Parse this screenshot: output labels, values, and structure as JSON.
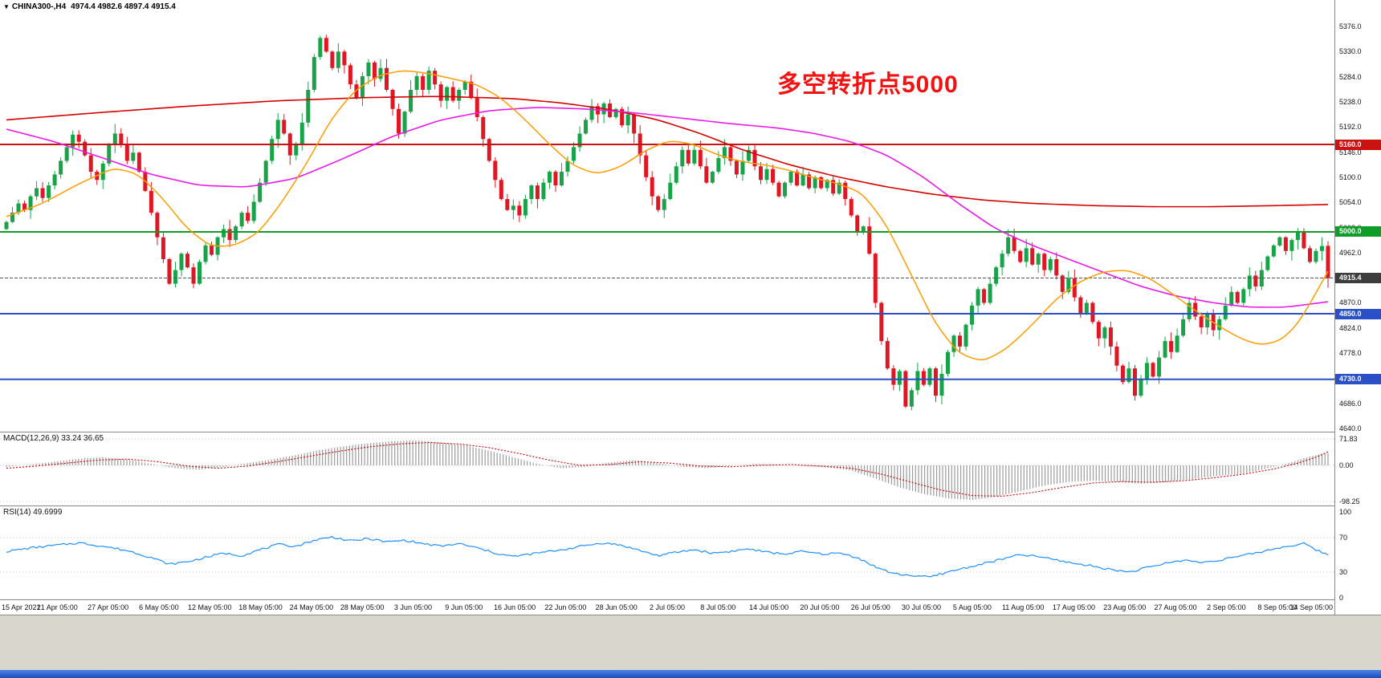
{
  "window": {
    "dropdown_icon": "▼",
    "symbol_title": "CHINA300-,H4",
    "ohlc_display": "4974.4 4982.6 4897.4 4915.4"
  },
  "annotation": {
    "text": "多空转折点5000",
    "color": "#f21212"
  },
  "panels": {
    "macd_label": "MACD(12,26,9) 33.24 36.65",
    "rsi_label": "RSI(14) 49.6999"
  },
  "chart_data": {
    "type": "candlestick",
    "symbol": "CHINA300-",
    "timeframe": "H4",
    "title": "CHINA300-,H4",
    "last_bar": {
      "open": 4974.4,
      "high": 4982.6,
      "low": 4897.4,
      "close": 4915.4
    },
    "ylim": [
      4640.0,
      5376.0
    ],
    "y_ticks": [
      5376,
      5330,
      5284,
      5238,
      5192,
      5146,
      5100,
      5054,
      5008,
      4962,
      4916,
      4870,
      4824,
      4778,
      4732,
      4686,
      4640
    ],
    "x_labels": [
      "15 Apr 2021",
      "21 Apr 05:00",
      "27 Apr 05:00",
      "6 May 05:00",
      "12 May 05:00",
      "18 May 05:00",
      "24 May 05:00",
      "28 May 05:00",
      "3 Jun 05:00",
      "9 Jun 05:00",
      "16 Jun 05:00",
      "22 Jun 05:00",
      "28 Jun 05:00",
      "2 Jul 05:00",
      "8 Jul 05:00",
      "14 Jul 05:00",
      "20 Jul 05:00",
      "26 Jul 05:00",
      "30 Jul 05:00",
      "5 Aug 05:00",
      "11 Aug 05:00",
      "17 Aug 05:00",
      "23 Aug 05:00",
      "27 Aug 05:00",
      "2 Sep 05:00",
      "8 Sep 05:00",
      "14 Sep 05:00"
    ],
    "first_open": 5005,
    "closes": [
      5018,
      5035,
      5052,
      5040,
      5065,
      5080,
      5062,
      5085,
      5105,
      5130,
      5155,
      5178,
      5165,
      5140,
      5110,
      5095,
      5125,
      5160,
      5180,
      5160,
      5130,
      5145,
      5110,
      5075,
      5035,
      4990,
      4950,
      4905,
      4930,
      4960,
      4935,
      4905,
      4945,
      4975,
      4958,
      4990,
      5005,
      4985,
      5010,
      5035,
      5020,
      5055,
      5090,
      5130,
      5170,
      5205,
      5180,
      5140,
      5160,
      5200,
      5260,
      5320,
      5355,
      5330,
      5300,
      5330,
      5305,
      5270,
      5245,
      5285,
      5310,
      5280,
      5300,
      5260,
      5225,
      5180,
      5220,
      5260,
      5285,
      5260,
      5295,
      5270,
      5240,
      5265,
      5240,
      5260,
      5275,
      5245,
      5210,
      5170,
      5130,
      5095,
      5060,
      5040,
      5048,
      5030,
      5060,
      5085,
      5060,
      5090,
      5110,
      5085,
      5110,
      5130,
      5155,
      5180,
      5205,
      5230,
      5215,
      5235,
      5210,
      5225,
      5195,
      5215,
      5180,
      5140,
      5100,
      5065,
      5040,
      5060,
      5090,
      5120,
      5150,
      5125,
      5150,
      5120,
      5090,
      5110,
      5135,
      5155,
      5130,
      5105,
      5130,
      5150,
      5120,
      5095,
      5115,
      5090,
      5065,
      5090,
      5110,
      5085,
      5105,
      5080,
      5100,
      5080,
      5095,
      5070,
      5090,
      5060,
      5030,
      5000,
      5010,
      4960,
      4870,
      4800,
      4750,
      4720,
      4745,
      4680,
      4710,
      4745,
      4720,
      4750,
      4700,
      4740,
      4780,
      4810,
      4790,
      4830,
      4865,
      4895,
      4870,
      4905,
      4935,
      4960,
      4990,
      4965,
      4945,
      4970,
      4940,
      4960,
      4930,
      4950,
      4920,
      4890,
      4915,
      4880,
      4850,
      4870,
      4835,
      4805,
      4825,
      4790,
      4755,
      4725,
      4750,
      4700,
      4730,
      4760,
      4735,
      4770,
      4800,
      4780,
      4810,
      4840,
      4870,
      4845,
      4825,
      4850,
      4820,
      4840,
      4865,
      4890,
      4870,
      4895,
      4920,
      4900,
      4930,
      4955,
      4975,
      4990,
      4965,
      4985,
      5000,
      4970,
      4945,
      4965,
      4974,
      4915.4
    ],
    "ma_red_path": [
      [
        0,
        5205
      ],
      [
        15,
        5218
      ],
      [
        30,
        5230
      ],
      [
        45,
        5240
      ],
      [
        60,
        5246
      ],
      [
        72,
        5248
      ],
      [
        84,
        5244
      ],
      [
        92,
        5236
      ],
      [
        100,
        5224
      ],
      [
        108,
        5205
      ],
      [
        115,
        5180
      ],
      [
        122,
        5150
      ],
      [
        130,
        5122
      ],
      [
        138,
        5100
      ],
      [
        146,
        5082
      ],
      [
        154,
        5068
      ],
      [
        162,
        5058
      ],
      [
        170,
        5052
      ],
      [
        180,
        5048
      ],
      [
        190,
        5046
      ],
      [
        200,
        5046
      ],
      [
        210,
        5048
      ],
      [
        219,
        5050
      ]
    ],
    "ma_magenta_path": [
      [
        0,
        5188
      ],
      [
        8,
        5165
      ],
      [
        16,
        5135
      ],
      [
        24,
        5105
      ],
      [
        32,
        5085
      ],
      [
        40,
        5082
      ],
      [
        48,
        5098
      ],
      [
        56,
        5135
      ],
      [
        64,
        5175
      ],
      [
        72,
        5205
      ],
      [
        80,
        5222
      ],
      [
        88,
        5228
      ],
      [
        96,
        5225
      ],
      [
        104,
        5218
      ],
      [
        112,
        5208
      ],
      [
        120,
        5198
      ],
      [
        128,
        5190
      ],
      [
        134,
        5180
      ],
      [
        140,
        5165
      ],
      [
        146,
        5140
      ],
      [
        152,
        5100
      ],
      [
        158,
        5050
      ],
      [
        164,
        5005
      ],
      [
        170,
        4975
      ],
      [
        176,
        4950
      ],
      [
        182,
        4925
      ],
      [
        188,
        4900
      ],
      [
        194,
        4882
      ],
      [
        200,
        4870
      ],
      [
        206,
        4862
      ],
      [
        212,
        4862
      ],
      [
        219,
        4872
      ]
    ],
    "ma_orange_path": [
      [
        0,
        5028
      ],
      [
        6,
        5052
      ],
      [
        12,
        5088
      ],
      [
        18,
        5118
      ],
      [
        22,
        5105
      ],
      [
        26,
        5060
      ],
      [
        30,
        5005
      ],
      [
        34,
        4972
      ],
      [
        38,
        4975
      ],
      [
        42,
        5000
      ],
      [
        46,
        5060
      ],
      [
        50,
        5130
      ],
      [
        54,
        5210
      ],
      [
        58,
        5262
      ],
      [
        62,
        5288
      ],
      [
        66,
        5296
      ],
      [
        70,
        5290
      ],
      [
        74,
        5280
      ],
      [
        78,
        5270
      ],
      [
        82,
        5245
      ],
      [
        86,
        5205
      ],
      [
        90,
        5160
      ],
      [
        94,
        5120
      ],
      [
        98,
        5105
      ],
      [
        102,
        5120
      ],
      [
        106,
        5150
      ],
      [
        110,
        5168
      ],
      [
        114,
        5160
      ],
      [
        118,
        5140
      ],
      [
        122,
        5128
      ],
      [
        126,
        5122
      ],
      [
        130,
        5112
      ],
      [
        134,
        5098
      ],
      [
        138,
        5088
      ],
      [
        142,
        5070
      ],
      [
        146,
        5010
      ],
      [
        150,
        4920
      ],
      [
        154,
        4830
      ],
      [
        158,
        4775
      ],
      [
        162,
        4762
      ],
      [
        166,
        4788
      ],
      [
        170,
        4830
      ],
      [
        174,
        4878
      ],
      [
        178,
        4910
      ],
      [
        182,
        4928
      ],
      [
        186,
        4930
      ],
      [
        190,
        4912
      ],
      [
        194,
        4880
      ],
      [
        198,
        4848
      ],
      [
        202,
        4820
      ],
      [
        205,
        4802
      ],
      [
        208,
        4792
      ],
      [
        211,
        4800
      ],
      [
        213,
        4818
      ],
      [
        215,
        4848
      ],
      [
        217,
        4888
      ],
      [
        219,
        4928
      ]
    ],
    "horizontal_lines": [
      {
        "price": 5160.0,
        "color": "#cc1111",
        "width": 2
      },
      {
        "price": 5000.0,
        "color": "#0f9d2a",
        "width": 2
      },
      {
        "price": 4850.0,
        "color": "#2a50c8",
        "width": 2
      },
      {
        "price": 4730.0,
        "color": "#2a50c8",
        "width": 2
      }
    ],
    "current_price": 4915.4,
    "price_labels": [
      {
        "value": 5160.0,
        "bg": "#cc1111"
      },
      {
        "value": 5000.0,
        "bg": "#0f9d2a"
      },
      {
        "value": 4915.4,
        "bg": "#3d3d3d"
      },
      {
        "value": 4850.0,
        "bg": "#2a50c8"
      },
      {
        "value": 4730.0,
        "bg": "#2a50c8"
      }
    ],
    "macd": {
      "label": "MACD(12,26,9)",
      "values": [
        33.24,
        36.65
      ],
      "ylim": [
        -98.25,
        71.83
      ],
      "axis_ticks": [
        71.83,
        0,
        -98.25
      ],
      "histogram_path": [
        [
          0,
          -4
        ],
        [
          4,
          2
        ],
        [
          8,
          10
        ],
        [
          12,
          18
        ],
        [
          16,
          22
        ],
        [
          20,
          16
        ],
        [
          24,
          4
        ],
        [
          28,
          -8
        ],
        [
          32,
          -12
        ],
        [
          36,
          -4
        ],
        [
          40,
          6
        ],
        [
          44,
          16
        ],
        [
          48,
          28
        ],
        [
          52,
          42
        ],
        [
          56,
          52
        ],
        [
          60,
          60
        ],
        [
          64,
          66
        ],
        [
          68,
          68
        ],
        [
          72,
          62
        ],
        [
          76,
          54
        ],
        [
          80,
          40
        ],
        [
          84,
          22
        ],
        [
          88,
          4
        ],
        [
          92,
          -8
        ],
        [
          96,
          -4
        ],
        [
          100,
          8
        ],
        [
          104,
          14
        ],
        [
          108,
          6
        ],
        [
          112,
          -4
        ],
        [
          116,
          -8
        ],
        [
          120,
          -2
        ],
        [
          124,
          4
        ],
        [
          128,
          2
        ],
        [
          132,
          -2
        ],
        [
          136,
          -6
        ],
        [
          140,
          -14
        ],
        [
          144,
          -36
        ],
        [
          148,
          -60
        ],
        [
          152,
          -78
        ],
        [
          156,
          -90
        ],
        [
          160,
          -94
        ],
        [
          164,
          -86
        ],
        [
          168,
          -70
        ],
        [
          172,
          -55
        ],
        [
          176,
          -45
        ],
        [
          180,
          -42
        ],
        [
          184,
          -45
        ],
        [
          188,
          -50
        ],
        [
          192,
          -46
        ],
        [
          196,
          -38
        ],
        [
          200,
          -30
        ],
        [
          204,
          -24
        ],
        [
          208,
          -12
        ],
        [
          212,
          4
        ],
        [
          214,
          14
        ],
        [
          216,
          24
        ],
        [
          218,
          31
        ],
        [
          219,
          33.24
        ]
      ],
      "signal_path": [
        [
          0,
          -8
        ],
        [
          5,
          -2
        ],
        [
          10,
          6
        ],
        [
          15,
          14
        ],
        [
          20,
          17
        ],
        [
          25,
          10
        ],
        [
          30,
          -2
        ],
        [
          35,
          -8
        ],
        [
          40,
          -2
        ],
        [
          45,
          10
        ],
        [
          50,
          24
        ],
        [
          55,
          38
        ],
        [
          60,
          50
        ],
        [
          65,
          58
        ],
        [
          70,
          62
        ],
        [
          75,
          58
        ],
        [
          80,
          48
        ],
        [
          85,
          32
        ],
        [
          90,
          14
        ],
        [
          95,
          0
        ],
        [
          100,
          2
        ],
        [
          105,
          10
        ],
        [
          110,
          6
        ],
        [
          115,
          -2
        ],
        [
          120,
          -4
        ],
        [
          125,
          0
        ],
        [
          130,
          2
        ],
        [
          135,
          -2
        ],
        [
          140,
          -8
        ],
        [
          145,
          -24
        ],
        [
          150,
          -46
        ],
        [
          155,
          -68
        ],
        [
          160,
          -82
        ],
        [
          165,
          -84
        ],
        [
          170,
          -74
        ],
        [
          175,
          -60
        ],
        [
          180,
          -48
        ],
        [
          185,
          -44
        ],
        [
          190,
          -46
        ],
        [
          195,
          -42
        ],
        [
          200,
          -34
        ],
        [
          205,
          -24
        ],
        [
          210,
          -10
        ],
        [
          214,
          6
        ],
        [
          217,
          22
        ],
        [
          219,
          36.65
        ]
      ]
    },
    "rsi": {
      "label": "RSI(14)",
      "value": 49.6999,
      "ylim": [
        0,
        100
      ],
      "axis_ticks": [
        100,
        70,
        30,
        0
      ],
      "levels": [
        70,
        30
      ],
      "path": [
        [
          0,
          54
        ],
        [
          4,
          58
        ],
        [
          8,
          61
        ],
        [
          12,
          64
        ],
        [
          16,
          60
        ],
        [
          20,
          55
        ],
        [
          24,
          47
        ],
        [
          27,
          39
        ],
        [
          30,
          42
        ],
        [
          33,
          47
        ],
        [
          36,
          52
        ],
        [
          39,
          49
        ],
        [
          42,
          56
        ],
        [
          45,
          62
        ],
        [
          48,
          60
        ],
        [
          51,
          67
        ],
        [
          54,
          71
        ],
        [
          57,
          66
        ],
        [
          60,
          69
        ],
        [
          63,
          65
        ],
        [
          66,
          67
        ],
        [
          69,
          63
        ],
        [
          72,
          60
        ],
        [
          75,
          63
        ],
        [
          78,
          58
        ],
        [
          81,
          52
        ],
        [
          84,
          48
        ],
        [
          87,
          51
        ],
        [
          90,
          54
        ],
        [
          93,
          57
        ],
        [
          96,
          61
        ],
        [
          99,
          64
        ],
        [
          102,
          61
        ],
        [
          105,
          55
        ],
        [
          108,
          49
        ],
        [
          111,
          53
        ],
        [
          114,
          56
        ],
        [
          117,
          52
        ],
        [
          120,
          54
        ],
        [
          123,
          57
        ],
        [
          126,
          53
        ],
        [
          129,
          51
        ],
        [
          132,
          54
        ],
        [
          135,
          51
        ],
        [
          138,
          52
        ],
        [
          141,
          47
        ],
        [
          144,
          36
        ],
        [
          147,
          28
        ],
        [
          150,
          26
        ],
        [
          153,
          24
        ],
        [
          156,
          30
        ],
        [
          159,
          35
        ],
        [
          162,
          40
        ],
        [
          165,
          45
        ],
        [
          168,
          50
        ],
        [
          171,
          48
        ],
        [
          174,
          44
        ],
        [
          177,
          40
        ],
        [
          180,
          37
        ],
        [
          183,
          33
        ],
        [
          186,
          30
        ],
        [
          189,
          35
        ],
        [
          192,
          40
        ],
        [
          195,
          44
        ],
        [
          198,
          41
        ],
        [
          201,
          44
        ],
        [
          204,
          48
        ],
        [
          207,
          52
        ],
        [
          210,
          57
        ],
        [
          213,
          61
        ],
        [
          215,
          63
        ],
        [
          217,
          56
        ],
        [
          219,
          49.7
        ]
      ]
    },
    "colors": {
      "up": "#18a348",
      "down": "#e01622",
      "ma_red": "#d40000",
      "ma_magenta": "#e81ce8",
      "ma_orange": "#ff9c00",
      "hist": "#9b9b9b",
      "signal": "#d40000",
      "rsi": "#1E90FF",
      "level_dotted": "#c6c6c6",
      "separator": "#8a8a8a",
      "current_price_line": "#555555"
    }
  }
}
